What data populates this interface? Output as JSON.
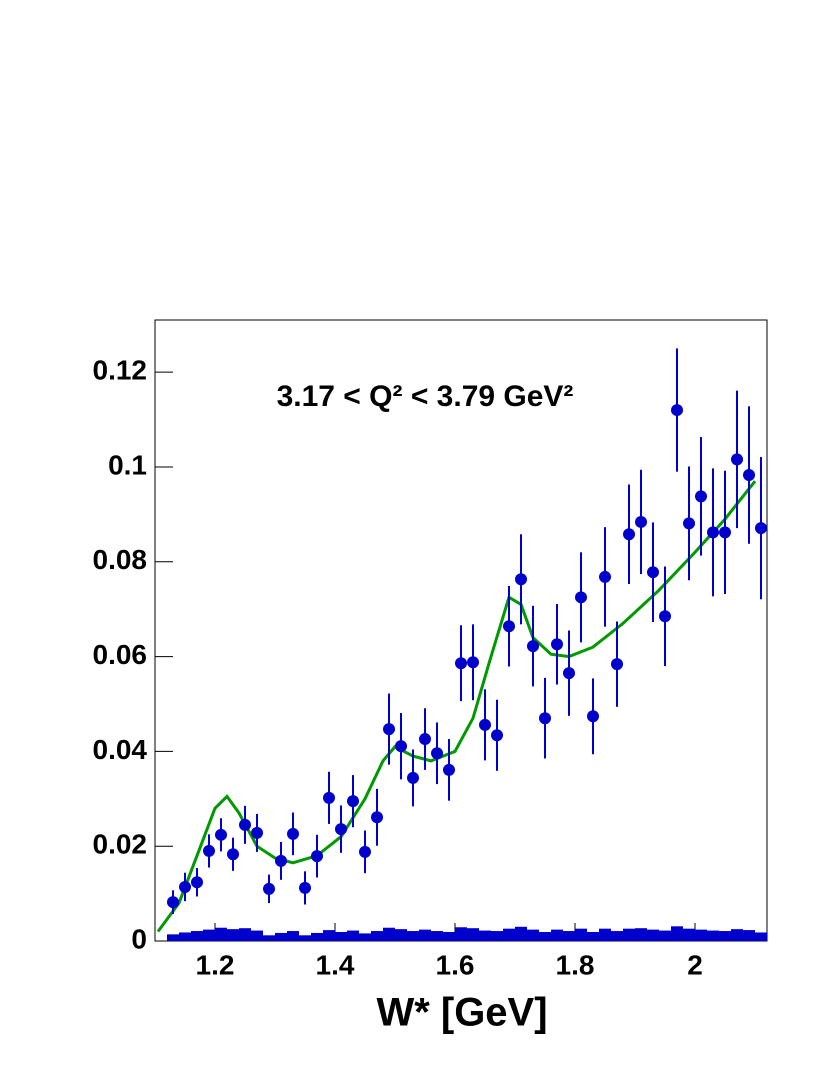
{
  "chart_data": {
    "type": "scatter",
    "annotation": "3.17 < Q² < 3.79 GeV²",
    "x_label": "W* [GeV]",
    "xlim": [
      1.1,
      2.12
    ],
    "ylim": [
      0,
      0.131
    ],
    "xticks": [
      1.2,
      1.4,
      1.6,
      1.8,
      2
    ],
    "yticks": [
      0,
      0.02,
      0.04,
      0.06,
      0.08,
      0.1,
      0.12
    ],
    "color": "#0000cc",
    "x": [
      1.13,
      1.15,
      1.17,
      1.19,
      1.21,
      1.23,
      1.25,
      1.27,
      1.29,
      1.31,
      1.33,
      1.35,
      1.37,
      1.39,
      1.41,
      1.43,
      1.45,
      1.47,
      1.49,
      1.51,
      1.53,
      1.55,
      1.57,
      1.59,
      1.61,
      1.63,
      1.65,
      1.67,
      1.69,
      1.71,
      1.73,
      1.75,
      1.77,
      1.79,
      1.81,
      1.83,
      1.85,
      1.87,
      1.89,
      1.91,
      1.93,
      1.95,
      1.97,
      1.99,
      2.01,
      2.03,
      2.05,
      2.07,
      2.09,
      2.11
    ],
    "values": [
      0.0082,
      0.0114,
      0.0124,
      0.019,
      0.0224,
      0.0183,
      0.0245,
      0.0228,
      0.011,
      0.0169,
      0.0226,
      0.0112,
      0.0179,
      0.0302,
      0.0236,
      0.0295,
      0.0188,
      0.0261,
      0.0447,
      0.0411,
      0.0344,
      0.0426,
      0.0396,
      0.0361,
      0.0586,
      0.0588,
      0.0456,
      0.0434,
      0.0664,
      0.0763,
      0.0622,
      0.047,
      0.0626,
      0.0565,
      0.0725,
      0.0474,
      0.0768,
      0.0584,
      0.0858,
      0.0884,
      0.0778,
      0.0685,
      0.112,
      0.0881,
      0.0938,
      0.0862,
      0.0862,
      0.1016,
      0.0983,
      0.0871
    ],
    "errors": [
      0.0025,
      0.003,
      0.003,
      0.0035,
      0.0035,
      0.0035,
      0.004,
      0.004,
      0.003,
      0.004,
      0.0045,
      0.0035,
      0.0045,
      0.0055,
      0.005,
      0.0055,
      0.0045,
      0.006,
      0.0075,
      0.007,
      0.006,
      0.0065,
      0.0065,
      0.0065,
      0.008,
      0.008,
      0.0075,
      0.0075,
      0.0085,
      0.0095,
      0.0085,
      0.0085,
      0.0085,
      0.009,
      0.0095,
      0.008,
      0.0105,
      0.009,
      0.0105,
      0.011,
      0.0105,
      0.0105,
      0.013,
      0.012,
      0.0125,
      0.0135,
      0.013,
      0.0145,
      0.0145,
      0.015
    ],
    "fit": {
      "color": "#009900",
      "x": [
        1.105,
        1.14,
        1.17,
        1.2,
        1.22,
        1.24,
        1.27,
        1.3,
        1.33,
        1.37,
        1.41,
        1.45,
        1.48,
        1.5,
        1.53,
        1.56,
        1.6,
        1.63,
        1.66,
        1.69,
        1.71,
        1.73,
        1.76,
        1.79,
        1.83,
        1.88,
        1.94,
        2.0,
        2.05,
        2.1
      ],
      "values": [
        0.002,
        0.008,
        0.018,
        0.028,
        0.0305,
        0.027,
        0.02,
        0.0175,
        0.0165,
        0.018,
        0.022,
        0.03,
        0.038,
        0.041,
        0.039,
        0.038,
        0.04,
        0.047,
        0.06,
        0.0725,
        0.071,
        0.064,
        0.0605,
        0.06,
        0.062,
        0.067,
        0.074,
        0.082,
        0.089,
        0.097
      ]
    },
    "systematics": {
      "color": "#0000cc",
      "bins": [
        1.12,
        1.14,
        1.16,
        1.18,
        1.2,
        1.22,
        1.24,
        1.26,
        1.28,
        1.3,
        1.32,
        1.34,
        1.36,
        1.38,
        1.4,
        1.42,
        1.44,
        1.46,
        1.48,
        1.5,
        1.52,
        1.54,
        1.56,
        1.58,
        1.6,
        1.62,
        1.64,
        1.66,
        1.68,
        1.7,
        1.72,
        1.74,
        1.76,
        1.78,
        1.8,
        1.82,
        1.84,
        1.86,
        1.88,
        1.9,
        1.92,
        1.94,
        1.96,
        1.98,
        2.0,
        2.02,
        2.04,
        2.06,
        2.08,
        2.1,
        2.12
      ],
      "values": [
        0.0014,
        0.0018,
        0.0021,
        0.0024,
        0.0028,
        0.0025,
        0.0027,
        0.0022,
        0.0012,
        0.0017,
        0.0021,
        0.0012,
        0.0017,
        0.0023,
        0.0019,
        0.0022,
        0.0016,
        0.0021,
        0.0028,
        0.0025,
        0.0021,
        0.0024,
        0.0021,
        0.0019,
        0.0029,
        0.0027,
        0.0022,
        0.0021,
        0.0026,
        0.003,
        0.0024,
        0.0019,
        0.0024,
        0.0021,
        0.0026,
        0.0019,
        0.0026,
        0.0021,
        0.0026,
        0.0027,
        0.0024,
        0.0022,
        0.0031,
        0.0026,
        0.0024,
        0.0022,
        0.0021,
        0.0025,
        0.0023,
        0.0018
      ]
    }
  }
}
